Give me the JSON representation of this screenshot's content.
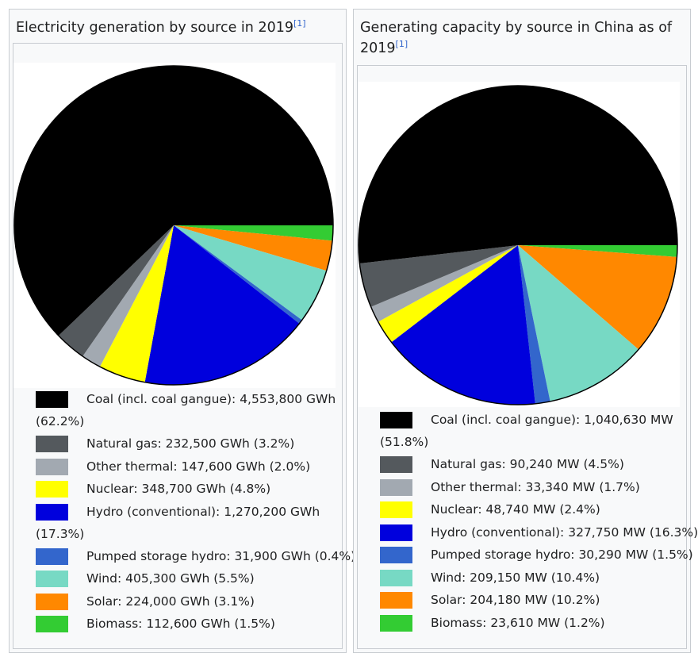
{
  "charts": [
    {
      "title": "Electricity generation by source in 2019",
      "ref": "[1]",
      "chart_data": {
        "type": "pie",
        "unit": "GWh",
        "slices": [
          {
            "label": "Coal (incl. coal gangue): 4,553,800 GWh (62.2%)",
            "value": 4553800,
            "percent": 62.2,
            "color": "#000000"
          },
          {
            "label": "Natural gas: 232,500 GWh (3.2%)",
            "value": 232500,
            "percent": 3.2,
            "color": "#54595d"
          },
          {
            "label": "Other thermal: 147,600 GWh (2.0%)",
            "value": 147600,
            "percent": 2.0,
            "color": "#a2a9b1"
          },
          {
            "label": "Nuclear: 348,700 GWh (4.8%)",
            "value": 348700,
            "percent": 4.8,
            "color": "#ffff00"
          },
          {
            "label": "Hydro (conventional): 1,270,200 GWh (17.3%)",
            "value": 1270200,
            "percent": 17.3,
            "color": "#0000dd"
          },
          {
            "label": "Pumped storage hydro: 31,900 GWh (0.4%)",
            "value": 31900,
            "percent": 0.4,
            "color": "#3366cc"
          },
          {
            "label": "Wind: 405,300 GWh (5.5%)",
            "value": 405300,
            "percent": 5.5,
            "color": "#77d9c4"
          },
          {
            "label": "Solar: 224,000 GWh (3.1%)",
            "value": 224000,
            "percent": 3.1,
            "color": "#ff8800"
          },
          {
            "label": "Biomass: 112,600 GWh (1.5%)",
            "value": 112600,
            "percent": 1.5,
            "color": "#33cc33"
          }
        ]
      }
    },
    {
      "title": "Generating capacity by source in China as of 2019",
      "ref": "[1]",
      "chart_data": {
        "type": "pie",
        "unit": "MW",
        "slices": [
          {
            "label": "Coal (incl. coal gangue): 1,040,630 MW (51.8%)",
            "value": 1040630,
            "percent": 51.8,
            "color": "#000000"
          },
          {
            "label": "Natural gas: 90,240 MW (4.5%)",
            "value": 90240,
            "percent": 4.5,
            "color": "#54595d"
          },
          {
            "label": "Other thermal: 33,340 MW (1.7%)",
            "value": 33340,
            "percent": 1.7,
            "color": "#a2a9b1"
          },
          {
            "label": "Nuclear: 48,740 MW (2.4%)",
            "value": 48740,
            "percent": 2.4,
            "color": "#ffff00"
          },
          {
            "label": "Hydro (conventional): 327,750 MW (16.3%)",
            "value": 327750,
            "percent": 16.3,
            "color": "#0000dd"
          },
          {
            "label": "Pumped storage hydro: 30,290 MW (1.5%)",
            "value": 30290,
            "percent": 1.5,
            "color": "#3366cc"
          },
          {
            "label": "Wind: 209,150 MW (10.4%)",
            "value": 209150,
            "percent": 10.4,
            "color": "#77d9c4"
          },
          {
            "label": "Solar: 204,180 MW (10.2%)",
            "value": 204180,
            "percent": 10.2,
            "color": "#ff8800"
          },
          {
            "label": "Biomass: 23,610 MW (1.2%)",
            "value": 23610,
            "percent": 1.2,
            "color": "#33cc33"
          }
        ]
      }
    }
  ]
}
